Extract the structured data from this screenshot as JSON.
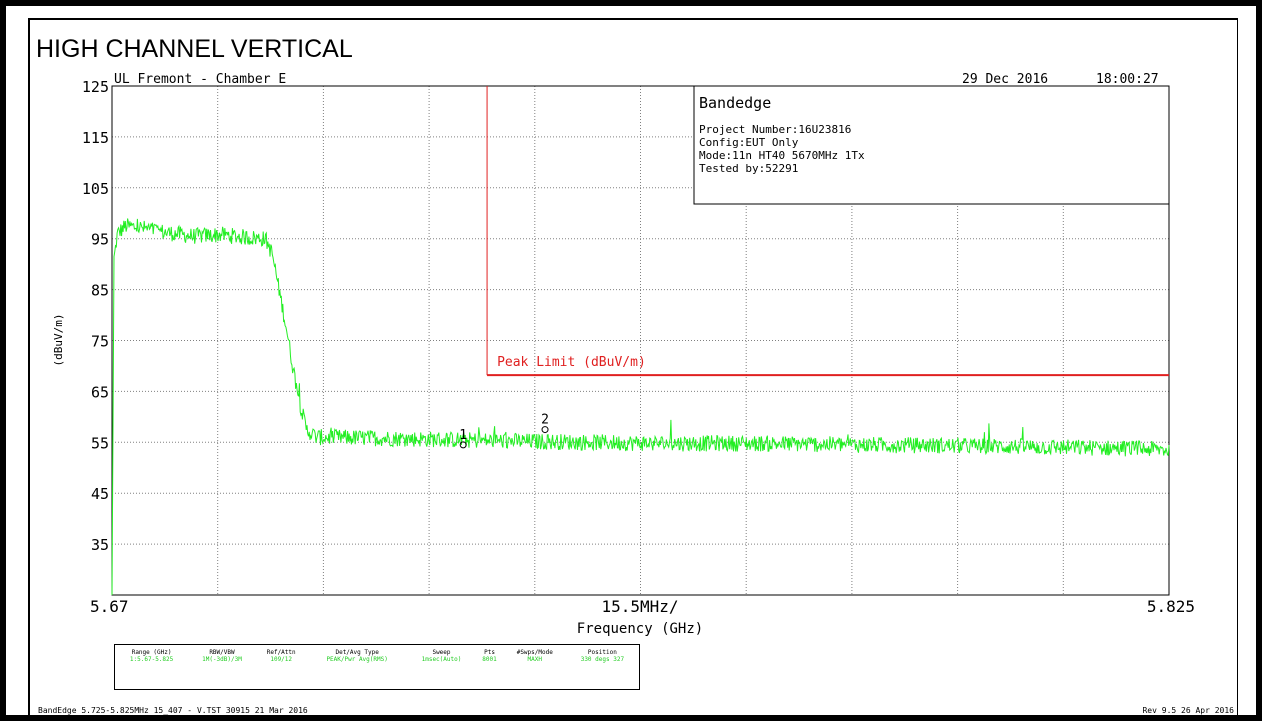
{
  "page_title": "HIGH CHANNEL VERTICAL",
  "header": {
    "lab": "UL Fremont - Chamber E",
    "date": "29 Dec 2016",
    "time": "18:00:27"
  },
  "info_box": {
    "title": "Bandedge",
    "lines": [
      "Project Number:16U23816",
      "Config:EUT Only",
      "Mode:11n HT40 5670MHz 1Tx",
      "Tested by:52291"
    ]
  },
  "chart_data": {
    "type": "line",
    "ylabel": "(dBuV/m)",
    "xlabel": "Frequency (GHz)",
    "x_start_label": "5.67",
    "x_span_label": "15.5MHz/",
    "x_end_label": "5.825",
    "xlim": [
      5.67,
      5.825
    ],
    "ylim": [
      25,
      125
    ],
    "yticks": [
      125,
      115,
      105,
      95,
      85,
      75,
      65,
      55,
      45,
      35
    ],
    "x_divisions": 10,
    "grid": true,
    "limit": {
      "name": "Peak Limit (dBuV/m)",
      "start_x": 5.725,
      "end_x": 5.825,
      "value": 68.2,
      "color": "#e02020"
    },
    "series": [
      {
        "color": "#22ee22",
        "points": [
          [
            5.67,
            20
          ],
          [
            5.6703,
            91
          ],
          [
            5.6708,
            96
          ],
          [
            5.672,
            97.5
          ],
          [
            5.675,
            97
          ],
          [
            5.678,
            96.2
          ],
          [
            5.682,
            95.5
          ],
          [
            5.686,
            95.8
          ],
          [
            5.69,
            95.2
          ],
          [
            5.6925,
            95
          ],
          [
            5.6935,
            92
          ],
          [
            5.6945,
            85
          ],
          [
            5.6955,
            78
          ],
          [
            5.6965,
            70
          ],
          [
            5.6975,
            63
          ],
          [
            5.6985,
            57.5
          ],
          [
            5.7,
            56
          ],
          [
            5.71,
            55.8
          ],
          [
            5.72,
            55.5
          ],
          [
            5.73,
            55.2
          ],
          [
            5.74,
            55
          ],
          [
            5.75,
            54.8
          ],
          [
            5.76,
            54.8
          ],
          [
            5.77,
            54.7
          ],
          [
            5.78,
            54.5
          ],
          [
            5.79,
            54.4
          ],
          [
            5.8,
            54.2
          ],
          [
            5.81,
            54
          ],
          [
            5.82,
            53.8
          ],
          [
            5.825,
            53.5
          ]
        ],
        "noise_db": 1.6
      }
    ],
    "markers": [
      {
        "label": "1",
        "x": 5.7215,
        "y": 54.5
      },
      {
        "label": "2",
        "x": 5.7335,
        "y": 57.5
      }
    ]
  },
  "settings": {
    "headers": [
      "Range (GHz)",
      "RBW/VBW",
      "Ref/Attn",
      "Det/Avg Type",
      "Sweep",
      "Pts",
      "#Swps/Mode",
      "Position"
    ],
    "values": [
      "1:5.67-5.825",
      "1M(-3dB)/3M",
      "109/12",
      "PEAK/Pwr Avg(RMS)",
      "1msec(Auto)",
      "8001",
      "MAXH",
      "330 degs 327"
    ]
  },
  "footer": {
    "left": "BandEdge 5.725-5.825MHz 15_407 - V.TST 30915 21 Mar 2016",
    "right": "Rev 9.5 26 Apr 2016"
  },
  "colors": {
    "trace": "#22ee22",
    "limit": "#e02020",
    "grid": "#808080"
  }
}
